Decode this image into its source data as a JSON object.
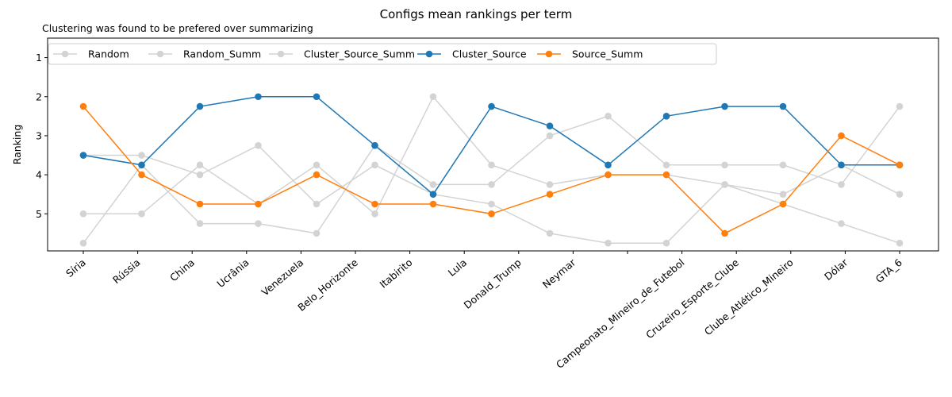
{
  "chart_data": {
    "type": "line",
    "title": "Configs mean rankings per term",
    "subtitle": "Clustering was found to be prefered over summarizing",
    "xlabel": "",
    "ylabel": "Ranking",
    "ylim": [
      5.95,
      0.5
    ],
    "y_inverted": true,
    "y_ticks": [
      1,
      2,
      3,
      4,
      5
    ],
    "grid": false,
    "legend_position": "top-left",
    "categories": [
      "Síria",
      "Rússia",
      "China",
      "Ucrânia",
      "Venezuela",
      "Belo_Horizonte",
      "Itabirito",
      "Lula",
      "Donald_Trump",
      "Neymar",
      "Campeonato_Mineiro_de_Futebol",
      "Cruzeiro_Esporte_Clube",
      "Clube_Atlético_Mineiro",
      "Dólar",
      "GTA_6"
    ],
    "x_tick_labels": [
      "Síria",
      "Rússia",
      "China",
      "Ucrânia",
      "Venezuela",
      "Belo_Horizonte",
      "Itabirito",
      "Lula",
      "Donald_Trump",
      "Neymar",
      "",
      "Campeonato_Mineiro_de_Futebol",
      "Cruzeiro_Esporte_Clube",
      "Clube_Atlético_Mineiro",
      "Dólar",
      "GTA_6"
    ],
    "series": [
      {
        "name": "Random",
        "color": "#d3d3d3",
        "values": [
          5.75,
          3.75,
          5.25,
          5.25,
          5.5,
          3.25,
          4.25,
          4.25,
          3.0,
          2.5,
          3.75,
          3.75,
          3.75,
          4.25,
          2.25
        ]
      },
      {
        "name": "Random_Summ",
        "color": "#d3d3d3",
        "values": [
          5.0,
          5.0,
          3.75,
          4.75,
          3.75,
          5.0,
          2.0,
          3.75,
          4.25,
          4.0,
          4.0,
          4.25,
          4.5,
          3.75,
          4.5
        ]
      },
      {
        "name": "Cluster_Source_Summ",
        "color": "#d3d3d3",
        "values": [
          3.5,
          3.5,
          4.0,
          3.25,
          4.75,
          3.75,
          4.5,
          4.75,
          5.5,
          5.75,
          5.75,
          4.25,
          4.75,
          5.25,
          5.75
        ]
      },
      {
        "name": "Cluster_Source",
        "color": "#1f77b4",
        "values": [
          3.5,
          3.75,
          2.25,
          2.0,
          2.0,
          3.25,
          4.5,
          2.25,
          2.75,
          3.75,
          2.5,
          2.25,
          2.25,
          3.75,
          3.75
        ]
      },
      {
        "name": "Source_Summ",
        "color": "#ff7f0e",
        "values": [
          2.25,
          4.0,
          4.75,
          4.75,
          4.0,
          4.75,
          4.75,
          5.0,
          4.5,
          4.0,
          4.0,
          5.5,
          4.75,
          3.0,
          3.75
        ]
      }
    ]
  }
}
